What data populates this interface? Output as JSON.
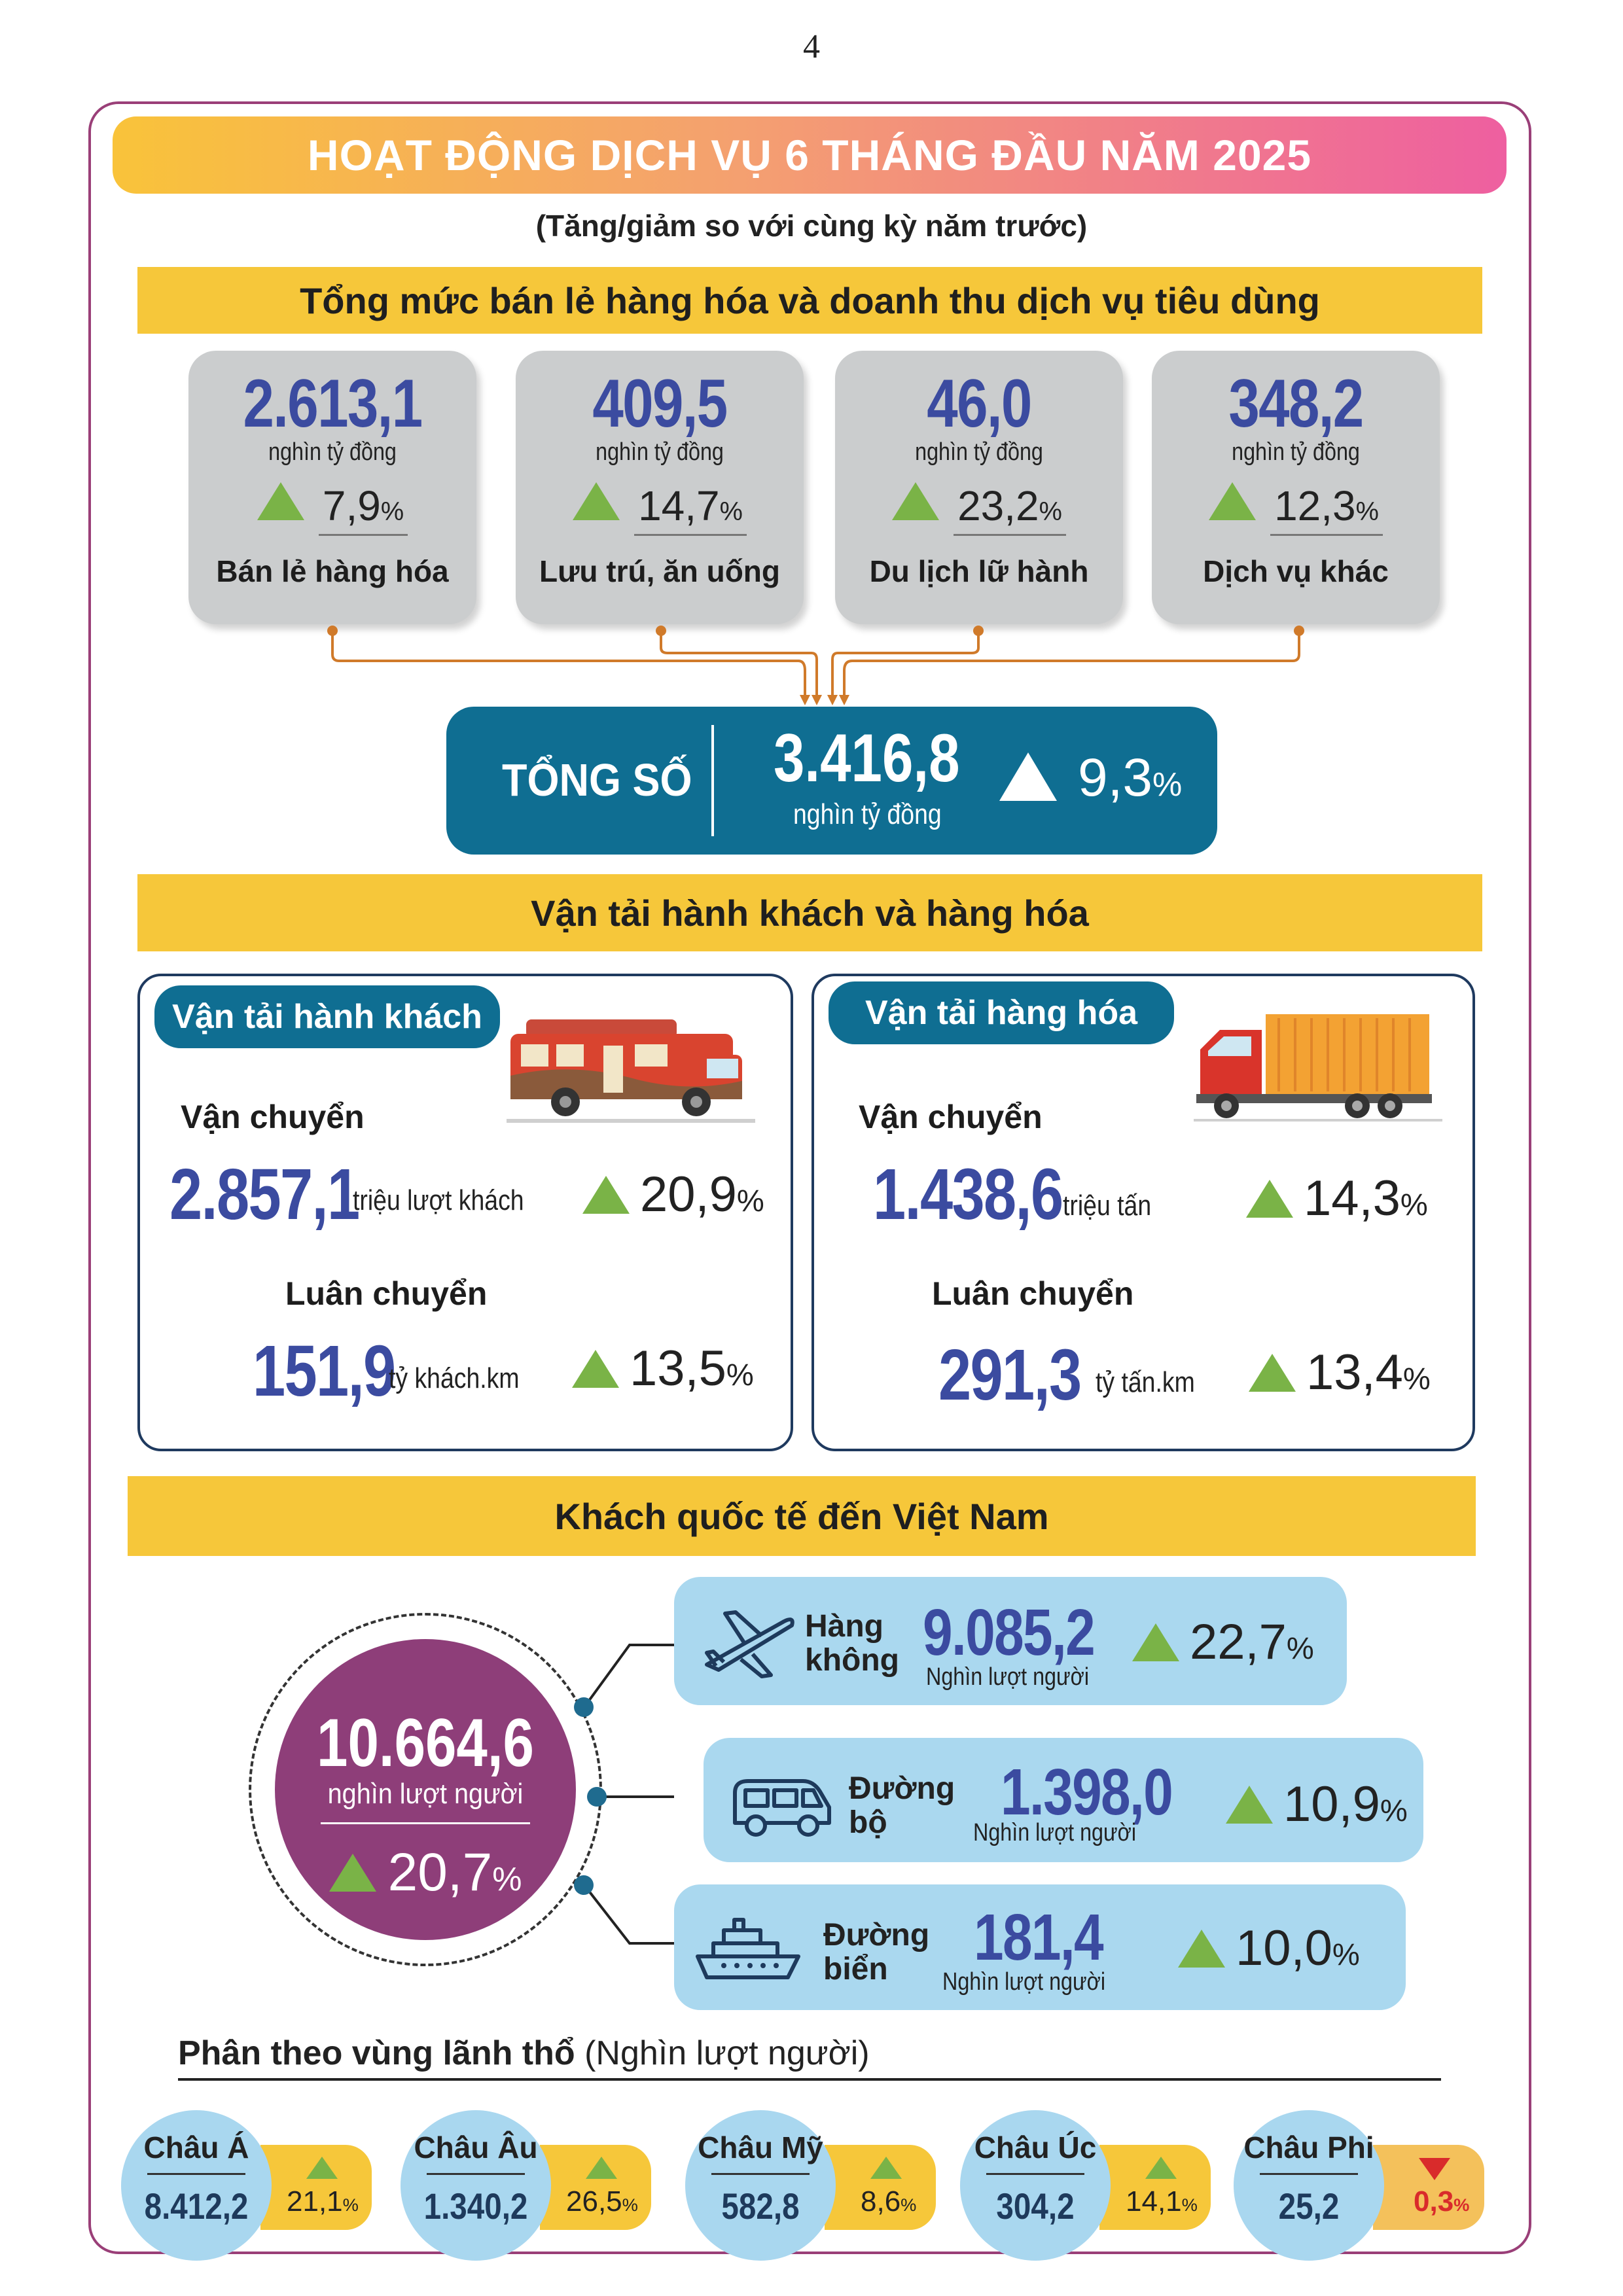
{
  "page_number": "4",
  "title": "HOẠT ĐỘNG DỊCH VỤ 6 THÁNG ĐẦU NĂM 2025",
  "subtitle": "(Tăng/giảm so với cùng kỳ năm trước)",
  "retail": {
    "heading": "Tổng mức bán lẻ hàng hóa và doanh thu dịch vụ tiêu dùng",
    "cards": [
      {
        "value": "2.613,1",
        "unit": "nghìn tỷ đồng",
        "change": "7,9",
        "pct": "%",
        "direction": "up",
        "name": "Bán lẻ hàng hóa"
      },
      {
        "value": "409,5",
        "unit": "nghìn tỷ đồng",
        "change": "14,7",
        "pct": "%",
        "direction": "up",
        "name": "Lưu trú, ăn uống"
      },
      {
        "value": "46,0",
        "unit": "nghìn tỷ đồng",
        "change": "23,2",
        "pct": "%",
        "direction": "up",
        "name": "Du lịch lữ hành"
      },
      {
        "value": "348,2",
        "unit": "nghìn tỷ đồng",
        "change": "12,3",
        "pct": "%",
        "direction": "up",
        "name": "Dịch vụ khác"
      }
    ],
    "total": {
      "label": "TỔNG SỐ",
      "value": "3.416,8",
      "unit": "nghìn tỷ đồng",
      "change": "9,3",
      "pct": "%",
      "direction": "up"
    }
  },
  "transport": {
    "heading": "Vận tải hành khách và hàng hóa",
    "passenger": {
      "title": "Vận tải hành khách",
      "icon": "bus-icon",
      "carried_label": "Vận chuyển",
      "carried_value": "2.857,1",
      "carried_unit": "triệu lượt khách",
      "carried_change": "20,9",
      "rotation_label": "Luân chuyển",
      "rotation_value": "151,9",
      "rotation_unit": "tỷ khách.km",
      "rotation_change": "13,5"
    },
    "cargo": {
      "title": "Vận tải hàng hóa",
      "icon": "truck-icon",
      "carried_label": "Vận chuyển",
      "carried_value": "1.438,6",
      "carried_unit": "triệu tấn",
      "carried_change": "14,3",
      "rotation_label": "Luân chuyển",
      "rotation_value": "291,3",
      "rotation_unit": "tỷ tấn.km",
      "rotation_change": "13,4"
    },
    "pct": "%"
  },
  "visitors": {
    "heading": "Khách quốc tế đến Việt Nam",
    "total_value": "10.664,6",
    "total_unit": "nghìn lượt người",
    "total_change": "20,7",
    "pct": "%",
    "modes": [
      {
        "name1": "Hàng",
        "name2": "không",
        "icon": "airplane-icon",
        "value": "9.085,2",
        "unit": "Nghìn lượt người",
        "change": "22,7"
      },
      {
        "name1": "Đường",
        "name2": "bộ",
        "icon": "van-icon",
        "value": "1.398,0",
        "unit": "Nghìn lượt người",
        "change": "10,9"
      },
      {
        "name1": "Đường",
        "name2": "biển",
        "icon": "ship-icon",
        "value": "181,4",
        "unit": "Nghìn lượt người",
        "change": "10,0"
      }
    ],
    "region_heading": "Phân theo vùng lãnh thổ",
    "region_heading_unit": " (Nghìn lượt người)",
    "regions": [
      {
        "name": "Châu Á",
        "value": "8.412,2",
        "change": "21,1",
        "direction": "up"
      },
      {
        "name": "Châu Âu",
        "value": "1.340,2",
        "change": "26,5",
        "direction": "up"
      },
      {
        "name": "Châu Mỹ",
        "value": "582,8",
        "change": "8,6",
        "direction": "up"
      },
      {
        "name": "Châu Úc",
        "value": "304,2",
        "change": "14,1",
        "direction": "up"
      },
      {
        "name": "Châu Phi",
        "value": "25,2",
        "change": "0,3",
        "direction": "down"
      }
    ]
  },
  "colors": {
    "accent_blue": "#0f6e92",
    "value_blue": "#3b4ba0",
    "up_green": "#7ab347",
    "down_red": "#d92b2b",
    "section_yellow": "#f6c73a",
    "circle_purple": "#8e3e79"
  }
}
